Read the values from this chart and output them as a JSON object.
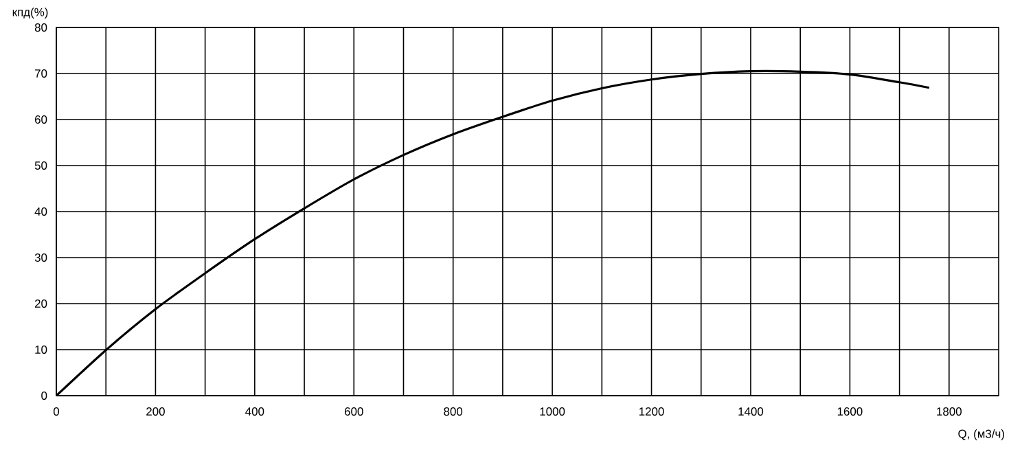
{
  "chart_data": {
    "type": "line",
    "xlabel": "Q, (м3/ч)",
    "ylabel": "кпд(%)",
    "x": [
      0,
      100,
      200,
      300,
      400,
      500,
      600,
      700,
      800,
      900,
      1000,
      1100,
      1200,
      1300,
      1400,
      1500,
      1600,
      1700,
      1760
    ],
    "series": [
      {
        "color": "#000000",
        "values": [
          0,
          9.9,
          18.8,
          26.6,
          34,
          40.7,
          47,
          52.3,
          56.8,
          60.6,
          64.1,
          66.8,
          68.7,
          69.9,
          70.5,
          70.4,
          69.8,
          68.1,
          66.9
        ]
      }
    ],
    "xlim": [
      0,
      1900
    ],
    "xticks": [
      0,
      {
        "value": 100,
        "label": null
      },
      200,
      {
        "value": 300,
        "label": null
      },
      400,
      {
        "value": 500,
        "label": null
      },
      600,
      {
        "value": 700,
        "label": null
      },
      800,
      {
        "value": 900,
        "label": null
      },
      1000,
      {
        "value": 1100,
        "label": null
      },
      1200,
      {
        "value": 1300,
        "label": null
      },
      1400,
      {
        "value": 1500,
        "label": null
      },
      1600,
      {
        "value": 1700,
        "label": null
      },
      1800
    ],
    "ylim": [
      0,
      80
    ],
    "yticks": [
      0,
      10,
      20,
      30,
      40,
      50,
      60,
      70,
      80
    ],
    "grid": true,
    "marker": "none",
    "line_style": "solid"
  }
}
